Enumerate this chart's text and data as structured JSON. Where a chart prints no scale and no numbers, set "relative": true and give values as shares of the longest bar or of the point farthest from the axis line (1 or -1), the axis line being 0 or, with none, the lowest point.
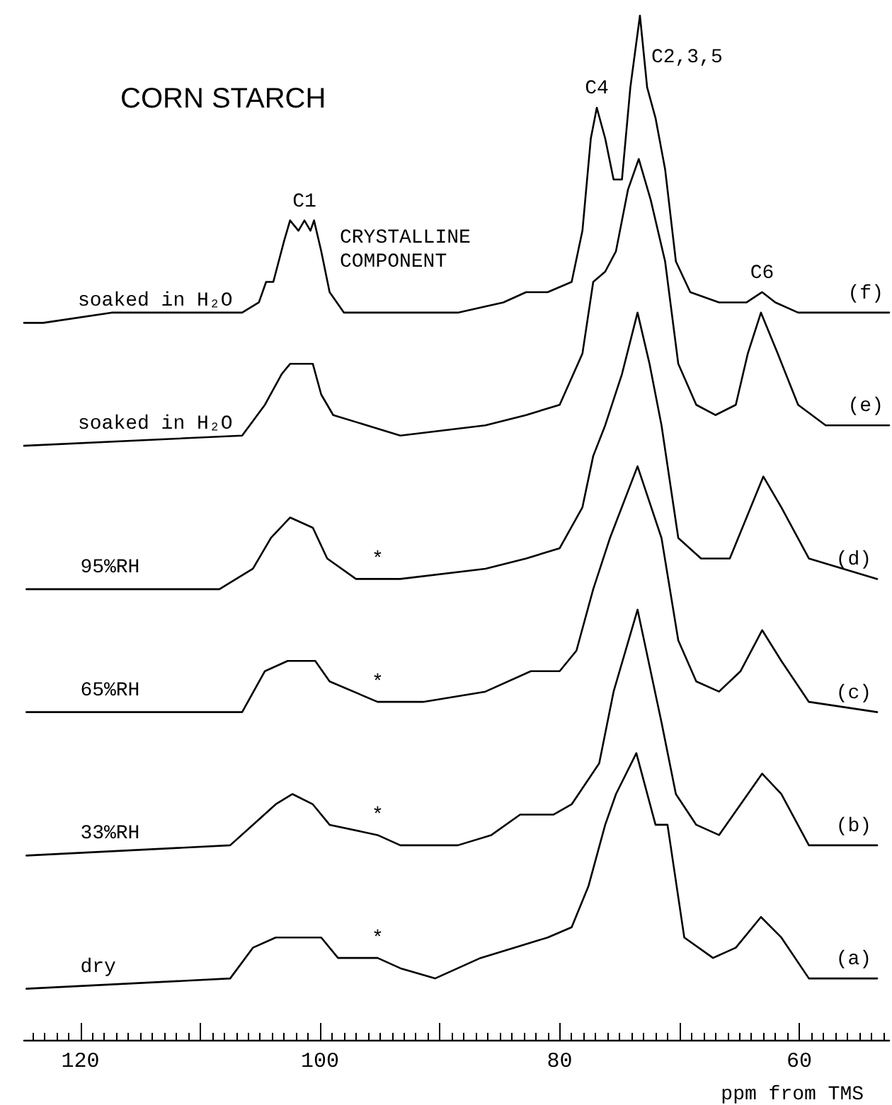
{
  "chart_data": {
    "type": "line",
    "title": "CORN STARCH",
    "xlabel": "ppm from TMS",
    "relative": true,
    "xlim": [
      124.7,
      52.5
    ],
    "xticks": [
      120,
      {
        "value": 110,
        "label": null
      },
      100,
      {
        "value": 90,
        "label": null
      },
      80,
      {
        "value": 70,
        "label": null
      },
      60
    ],
    "grid": false,
    "legend": false,
    "marker": "none",
    "line_style": "solid",
    "series": [
      {
        "name": "soaked in H₂O",
        "color": "#000000",
        "x": [
          124.7,
          123.1,
          117.4,
          106.5,
          105.1,
          104.5,
          103.9,
          103.0,
          102.5,
          101.8,
          101.3,
          100.8,
          100.5,
          99.9,
          99.2,
          98.0,
          93.3,
          88.5,
          84.7,
          82.8,
          81.0,
          79.0,
          78.1,
          77.4,
          76.9,
          76.2,
          75.5,
          74.8,
          74.1,
          73.3,
          72.7,
          72.0,
          71.2,
          70.3,
          69.1,
          66.7,
          64.4,
          63.1,
          62.0,
          60.1,
          52.5
        ],
        "values": [
          0.7,
          0.7,
          0.71,
          0.71,
          0.72,
          0.74,
          0.74,
          0.78,
          0.8,
          0.79,
          0.8,
          0.79,
          0.8,
          0.77,
          0.73,
          0.71,
          0.71,
          0.71,
          0.72,
          0.73,
          0.73,
          0.74,
          0.79,
          0.88,
          0.91,
          0.88,
          0.84,
          0.84,
          0.93,
          1.0,
          0.93,
          0.9,
          0.85,
          0.76,
          0.73,
          0.72,
          0.72,
          0.73,
          0.72,
          0.71,
          0.71
        ]
      },
      {
        "name": "soaked in H₂O",
        "color": "#000000",
        "x": [
          124.7,
          106.5,
          104.6,
          103.2,
          102.5,
          101.5,
          100.6,
          99.9,
          98.9,
          93.3,
          86.2,
          82.8,
          80.0,
          78.1,
          77.2,
          76.2,
          75.3,
          74.3,
          73.4,
          72.4,
          71.2,
          70.1,
          68.6,
          67.0,
          65.3,
          64.3,
          63.2,
          61.8,
          60.1,
          57.8,
          52.5
        ],
        "values": [
          0.58,
          0.59,
          0.62,
          0.65,
          0.66,
          0.66,
          0.66,
          0.63,
          0.61,
          0.59,
          0.6,
          0.61,
          0.62,
          0.67,
          0.74,
          0.75,
          0.77,
          0.83,
          0.86,
          0.82,
          0.76,
          0.66,
          0.62,
          0.61,
          0.62,
          0.67,
          0.71,
          0.67,
          0.62,
          0.6,
          0.6
        ]
      },
      {
        "name": "95%RH",
        "color": "#000000",
        "x": [
          124.5,
          108.4,
          105.6,
          104.1,
          102.5,
          100.6,
          99.4,
          97.0,
          95.2,
          93.3,
          86.2,
          82.8,
          80.0,
          78.1,
          77.2,
          76.2,
          74.8,
          73.5,
          72.5,
          71.5,
          70.1,
          68.2,
          65.8,
          64.4,
          63.0,
          61.5,
          59.2,
          53.5
        ],
        "values": [
          0.44,
          0.44,
          0.46,
          0.49,
          0.51,
          0.5,
          0.47,
          0.45,
          0.45,
          0.45,
          0.46,
          0.47,
          0.48,
          0.52,
          0.57,
          0.6,
          0.65,
          0.71,
          0.66,
          0.6,
          0.49,
          0.47,
          0.47,
          0.51,
          0.55,
          0.52,
          0.47,
          0.45
        ]
      },
      {
        "name": "65%RH",
        "color": "#000000",
        "x": [
          124.5,
          106.5,
          104.6,
          102.7,
          100.4,
          99.2,
          95.2,
          91.4,
          86.2,
          82.4,
          80.0,
          78.6,
          77.2,
          75.8,
          73.5,
          71.5,
          70.1,
          68.6,
          66.7,
          64.9,
          63.1,
          61.5,
          59.2,
          53.5
        ],
        "values": [
          0.32,
          0.32,
          0.36,
          0.37,
          0.37,
          0.35,
          0.33,
          0.33,
          0.34,
          0.36,
          0.36,
          0.38,
          0.44,
          0.49,
          0.56,
          0.49,
          0.39,
          0.35,
          0.34,
          0.36,
          0.4,
          0.37,
          0.33,
          0.32
        ]
      },
      {
        "name": "33%RH",
        "color": "#000000",
        "x": [
          124.5,
          107.5,
          105.6,
          103.7,
          102.3,
          100.6,
          99.2,
          95.2,
          93.3,
          88.5,
          85.7,
          83.3,
          80.5,
          79.0,
          76.7,
          75.5,
          73.5,
          71.5,
          70.3,
          68.6,
          66.7,
          64.9,
          63.1,
          61.5,
          59.2,
          53.5
        ],
        "values": [
          0.18,
          0.19,
          0.21,
          0.23,
          0.24,
          0.23,
          0.21,
          0.2,
          0.19,
          0.19,
          0.2,
          0.22,
          0.22,
          0.23,
          0.27,
          0.34,
          0.42,
          0.31,
          0.24,
          0.21,
          0.2,
          0.23,
          0.26,
          0.24,
          0.19,
          0.19
        ]
      },
      {
        "name": "dry",
        "color": "#000000",
        "x": [
          124.5,
          107.5,
          105.6,
          103.7,
          101.3,
          99.9,
          98.5,
          95.2,
          93.3,
          90.4,
          86.6,
          83.8,
          81.0,
          79.0,
          77.6,
          76.2,
          75.3,
          73.6,
          72.0,
          71.0,
          69.6,
          67.2,
          65.3,
          63.2,
          61.5,
          59.2,
          53.5
        ],
        "values": [
          0.05,
          0.06,
          0.09,
          0.1,
          0.1,
          0.1,
          0.08,
          0.08,
          0.07,
          0.06,
          0.08,
          0.09,
          0.1,
          0.11,
          0.15,
          0.21,
          0.24,
          0.28,
          0.21,
          0.21,
          0.1,
          0.08,
          0.09,
          0.12,
          0.1,
          0.06,
          0.06
        ]
      }
    ],
    "annotations": [
      {
        "text": "C1",
        "x": 101.3,
        "y": 0.8
      },
      "CRYSTALLINE COMPONENT",
      {
        "text": "C4",
        "x": 76.9,
        "y": 0.91
      },
      {
        "text": "C2,3,5",
        "x": 73.3,
        "y": 1.0
      },
      {
        "text": "C6",
        "x": 63.1,
        "y": 0.73
      },
      {
        "text": "(f)",
        "x": 52.5,
        "y": 0.71
      },
      {
        "text": "(e)",
        "x": 52.5,
        "y": 0.6
      },
      {
        "text": "(d)",
        "x": 53.5,
        "y": 0.45
      },
      {
        "text": "(c)",
        "x": 53.5,
        "y": 0.32
      },
      {
        "text": "(b)",
        "x": 53.5,
        "y": 0.19
      },
      {
        "text": "(a)",
        "x": 53.5,
        "y": 0.06
      },
      {
        "text": "*",
        "x": 95.2,
        "y": 0.45
      },
      {
        "text": "*",
        "x": 95.2,
        "y": 0.33
      },
      {
        "text": "*",
        "x": 95.2,
        "y": 0.2
      },
      {
        "text": "*",
        "x": 95.2,
        "y": 0.08
      }
    ]
  }
}
